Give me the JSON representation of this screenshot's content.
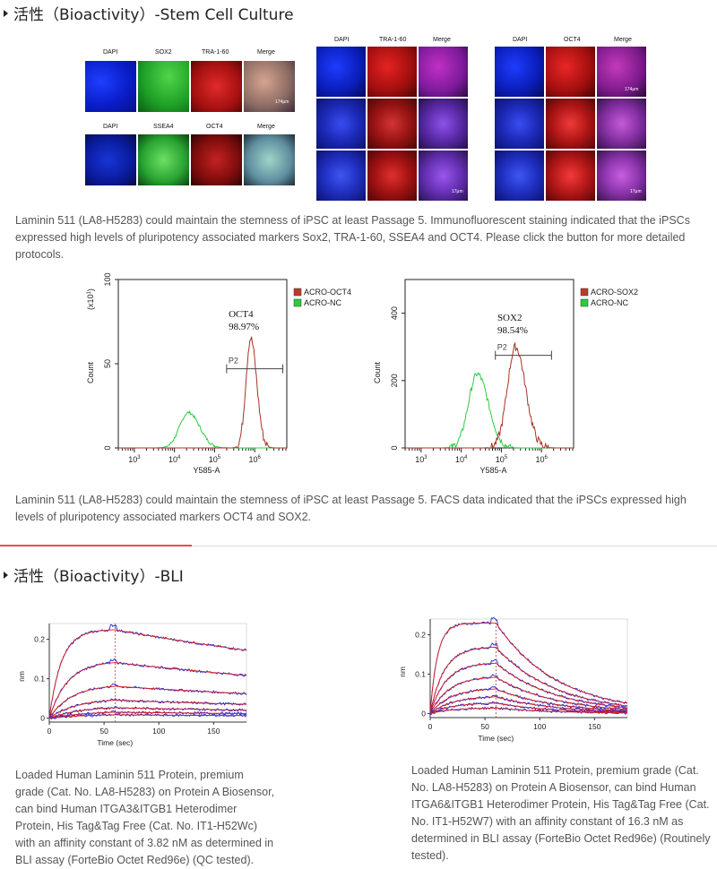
{
  "stem_section": {
    "title": "活性（Bioactivity）-Stem Cell Culture",
    "grid_a_labels_row1": [
      "DAPI",
      "SOX2",
      "TRA-1-60",
      "Merge"
    ],
    "grid_a_labels_row2": [
      "DAPI",
      "SSEA4",
      "OCT4",
      "Merge"
    ],
    "grid_b_labels": [
      "DAPI",
      "TRA-1-60",
      "Merge"
    ],
    "grid_c_labels": [
      "DAPI",
      "OCT4",
      "Merge"
    ],
    "scale_174": "174μm",
    "scale_17": "17μm",
    "caption_if": "Laminin 511 (LA8-H5283) could maintain the stemness of iPSC at least Passage 5. Immunofluorescent staining indicated that the iPSCs expressed high levels of pluripotency associated markers Sox2, TRA-1-60, SSEA4 and OCT4. Please click the button for more detailed protocols.",
    "caption_facs": "Laminin 511 (LA8-H5283) could maintain the stemness of iPSC at least Passage 5. FACS data indicated that the iPSCs expressed high levels of pluripotency associated markers OCT4 and SOX2."
  },
  "bli_section": {
    "title": "活性（Bioactivity）-BLI",
    "caption_left": "Loaded Human Laminin 511 Protein, premium grade (Cat. No. LA8-H5283) on Protein A Biosensor, can bind Human ITGA3&ITGB1 Heterodimer Protein, His Tag&Tag Free (Cat. No. IT1-H52Wc) with an affinity constant of 3.82 nM as determined in BLI assay (ForteBio Octet Red96e) (QC tested).",
    "caption_right": "Loaded Human Laminin 511 Protein, premium grade (Cat. No. LA8-H5283) on Protein A Biosensor, can bind Human ITGA6&ITGB1 Heterodimer Protein, His Tag&Tag Free (Cat. No. IT1-H52W7) with an affinity constant of 16.3 nM as determined in BLI assay (ForteBio Octet Red96e) (Routinely tested)."
  },
  "chart_data": [
    {
      "type": "area",
      "ylabel": "Count",
      "xlabel": "Y585-A",
      "y_multiplier_label": "(x10",
      "y_multiplier_exp": "1",
      "y_multiplier_close": ")",
      "ylim": [
        0,
        100
      ],
      "yticks": [
        "0",
        "50",
        "100"
      ],
      "xticks_exp": [
        "3",
        "4",
        "5",
        "6"
      ],
      "x_tick_base": "10",
      "gate_label": "P2",
      "annotation_name": "OCT4",
      "annotation_value": "98.97%",
      "legend": [
        {
          "name": "ACRO-OCT4",
          "color": "#c0392b"
        },
        {
          "name": "ACRO-NC",
          "color": "#2ecc40"
        }
      ],
      "series": [
        {
          "name": "ACRO-NC",
          "color": "#2ecc40",
          "peak_log": 4.35,
          "peak": 21,
          "width": 0.22
        },
        {
          "name": "ACRO-OCT4",
          "color": "#a93226",
          "peak_log": 5.9,
          "peak": 65,
          "width": 0.12
        }
      ],
      "gate_range_log": [
        5.3,
        6.7
      ]
    },
    {
      "type": "area",
      "ylabel": "Count",
      "xlabel": "Y585-A",
      "ylim": [
        0,
        500
      ],
      "yticks": [
        "0",
        "200",
        "400"
      ],
      "xticks_exp": [
        "3",
        "4",
        "5",
        "6"
      ],
      "x_tick_base": "10",
      "gate_label": "P2",
      "annotation_name": "SOX2",
      "annotation_value": "98.54%",
      "legend": [
        {
          "name": "ACRO-SOX2",
          "color": "#c0392b"
        },
        {
          "name": "ACRO-NC",
          "color": "#2ecc40"
        }
      ],
      "series": [
        {
          "name": "ACRO-NC",
          "color": "#2ecc40",
          "peak_log": 4.4,
          "peak": 220,
          "width": 0.22
        },
        {
          "name": "ACRO-SOX2",
          "color": "#a93226",
          "peak_log": 5.35,
          "peak": 300,
          "width": 0.2
        }
      ],
      "gate_range_log": [
        4.85,
        6.25
      ]
    },
    {
      "type": "line",
      "ylabel": "nm",
      "xlabel": "Time (sec)",
      "xlim": [
        0,
        180
      ],
      "ylim": [
        -0.01,
        0.24
      ],
      "xticks": [
        "0",
        "50",
        "100",
        "150"
      ],
      "yticks": [
        "0",
        "0.1",
        "0.2"
      ],
      "dissociation_start": 60,
      "curves_amplitude": [
        0.225,
        0.145,
        0.085,
        0.05,
        0.03,
        0.018,
        0.01
      ],
      "kon": [
        0.09,
        0.06,
        0.05,
        0.04,
        0.035,
        0.03,
        0.03
      ],
      "koff": 0.0022
    },
    {
      "type": "line",
      "ylabel": "nm",
      "xlabel": "Time (sec)",
      "xlim": [
        0,
        180
      ],
      "ylim": [
        -0.01,
        0.24
      ],
      "xticks": [
        "0",
        "50",
        "100",
        "150"
      ],
      "yticks": [
        "0",
        "0.1",
        "0.2"
      ],
      "dissociation_start": 60,
      "curves_amplitude": [
        0.23,
        0.17,
        0.13,
        0.095,
        0.065,
        0.045,
        0.028,
        0.015
      ],
      "kon": [
        0.15,
        0.08,
        0.07,
        0.06,
        0.055,
        0.05,
        0.05,
        0.05
      ],
      "koff": 0.018
    }
  ]
}
